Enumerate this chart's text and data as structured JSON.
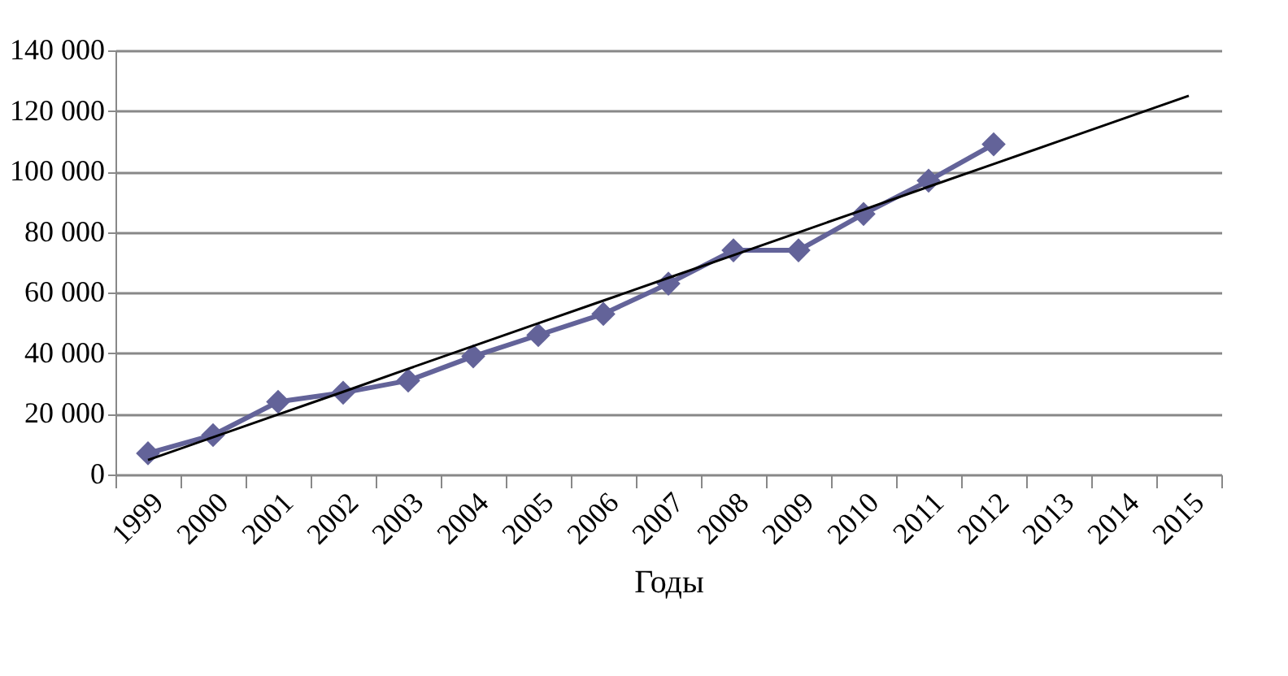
{
  "chart_data": {
    "type": "line",
    "xlabel": "Годы",
    "categories": [
      "1999",
      "2000",
      "2001",
      "2002",
      "2003",
      "2004",
      "2005",
      "2006",
      "2007",
      "2008",
      "2009",
      "2010",
      "2011",
      "2012",
      "2013",
      "2014",
      "2015"
    ],
    "series": [
      {
        "color": "#636399",
        "values": [
          7000,
          13000,
          24000,
          27000,
          31000,
          39000,
          46000,
          53000,
          63000,
          74000,
          74000,
          86000,
          97000,
          109000,
          null,
          null,
          null
        ],
        "marker": "diamond"
      },
      {
        "type": "line",
        "color": "#000000",
        "values": [
          4800,
          12300,
          19800,
          27300,
          34900,
          42400,
          49900,
          57400,
          64900,
          72400,
          79900,
          87400,
          95000,
          102500,
          110000,
          117500,
          125000
        ],
        "marker": "none"
      }
    ],
    "ylim": [
      0,
      140000
    ],
    "yticks": [
      {
        "value": 0,
        "label": "0"
      },
      {
        "value": 20000,
        "label": "20 000"
      },
      {
        "value": 40000,
        "label": "40 000"
      },
      {
        "value": 60000,
        "label": "60 000"
      },
      {
        "value": 80000,
        "label": "80 000"
      },
      {
        "value": 100000,
        "label": "100 000"
      },
      {
        "value": 120000,
        "label": "120 000"
      },
      {
        "value": 140000,
        "label": "140 000"
      }
    ],
    "grid": "y"
  }
}
